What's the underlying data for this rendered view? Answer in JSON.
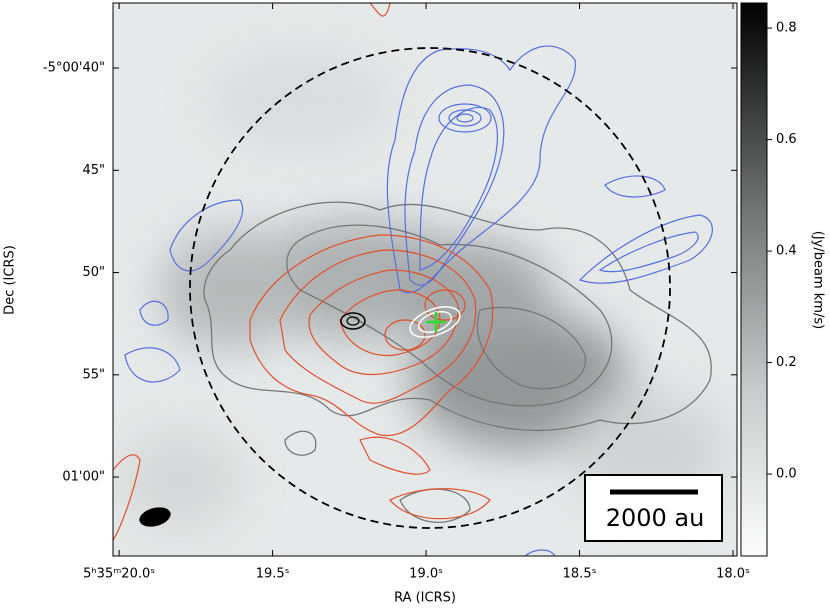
{
  "chart_data": {
    "type": "image",
    "xlabel": "RA (ICRS)",
    "ylabel": "Dec (ICRS)",
    "xlim": [
      20.02,
      17.987
    ],
    "xticks": [
      {
        "value": 20.0,
        "label": "5ʰ35ᵐ20.0ˢ"
      },
      {
        "value": 19.5,
        "label": "19.5ˢ"
      },
      {
        "value": 19.0,
        "label": "19.0ˢ"
      },
      {
        "value": 18.5,
        "label": "18.5ˢ"
      },
      {
        "value": 18.0,
        "label": "18.0ˢ"
      }
    ],
    "ylim": [
      63.86,
      36.82
    ],
    "yticks": [
      {
        "value": 40,
        "label": "-5°00'40\""
      },
      {
        "value": 45,
        "label": "45\""
      },
      {
        "value": 50,
        "label": "50\""
      },
      {
        "value": 55,
        "label": "55\""
      },
      {
        "value": 60,
        "label": "01'00\""
      }
    ],
    "colorbar": {
      "label": "(Jy/beam km/s)",
      "lim": [
        -0.147,
        0.845
      ],
      "ticks": [
        {
          "value": 0,
          "label": "0.0"
        },
        0.2,
        0.4,
        0.6,
        0.8
      ]
    },
    "scalebar": "2000 au"
  }
}
